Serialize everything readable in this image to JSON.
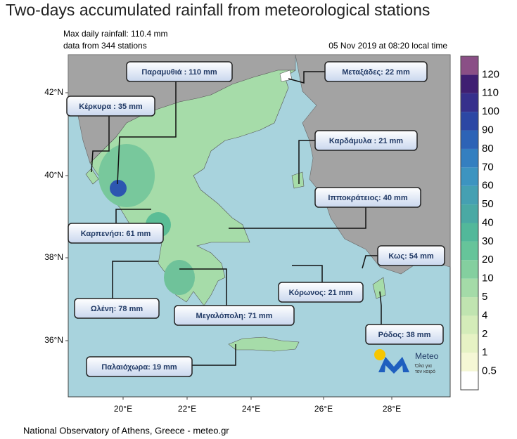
{
  "title": "Two-days accumulated rainfall from meteorological stations",
  "info": {
    "max_rainfall": "Max daily rainfall: 110.4 mm",
    "stations_count": "data from 344 stations",
    "timestamp": "05 Nov 2019 at 08:20 local time"
  },
  "stations": [
    "Παραμυθιά : 110 mm",
    "Κέρκυρα : 35 mm",
    "Μεταξάδες: 22 mm",
    "Καρδάμυλα : 21 mm",
    "Ιπποκράτειος: 40 mm",
    "Καρπενήσι: 61 mm",
    "Κως: 54 mm",
    "Ωλένη: 78 mm",
    "Μεγαλόπολη: 71 mm",
    "Κόρωνος: 21 mm",
    "Ρόδος: 38 mm",
    "Παλαιόχωρα: 19 mm"
  ],
  "lat_labels": [
    "42°N",
    "40°N",
    "38°N",
    "36°N"
  ],
  "lon_labels": [
    "20°E",
    "22°E",
    "24°E",
    "26°E",
    "28°E"
  ],
  "colorbar": {
    "levels": [
      0.5,
      1,
      2,
      4,
      5,
      10,
      20,
      30,
      40,
      50,
      60,
      70,
      80,
      90,
      100,
      110,
      120
    ],
    "colors": [
      "#ffffff",
      "#f5f7d5",
      "#e6f2c4",
      "#d4ecb9",
      "#c0e4b0",
      "#a4dba8",
      "#84cf9f",
      "#66c49a",
      "#52b89a",
      "#4aa9a4",
      "#45a0b2",
      "#3d94c0",
      "#347fc0",
      "#2d63b6",
      "#2c47a4",
      "#36308c",
      "#3f1f72",
      "#8a4f86"
    ]
  },
  "logo": {
    "name": "Meteo",
    "tagline_1": "Όλα για",
    "tagline_2": "τον καιρό"
  },
  "footer": "National Observatory of Athens, Greece - meteo.gr"
}
